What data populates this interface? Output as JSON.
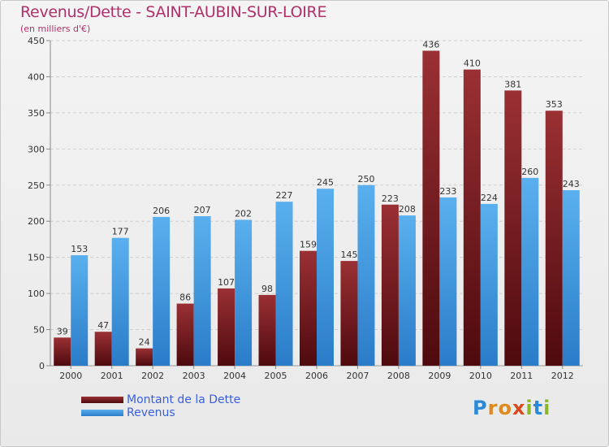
{
  "chart_data": {
    "type": "bar",
    "title": "Revenus/Dette - SAINT-AUBIN-SUR-LOIRE",
    "subtitle": "(en milliers d'€)",
    "categories": [
      "2000",
      "2001",
      "2002",
      "2003",
      "2004",
      "2005",
      "2006",
      "2007",
      "2008",
      "2009",
      "2010",
      "2011",
      "2012"
    ],
    "series": [
      {
        "name": "Montant de la Dette",
        "color": "#7a1e22",
        "values": [
          39,
          47,
          24,
          86,
          107,
          98,
          159,
          145,
          223,
          436,
          410,
          381,
          353
        ]
      },
      {
        "name": "Revenus",
        "color": "#3f9be3",
        "values": [
          153,
          177,
          206,
          207,
          202,
          227,
          245,
          250,
          208,
          233,
          224,
          260,
          243
        ]
      }
    ],
    "ylim": [
      0,
      450
    ],
    "yticks": [
      0,
      50,
      100,
      150,
      200,
      250,
      300,
      350,
      400,
      450
    ],
    "grid": true,
    "legend": "bottom-left"
  },
  "logo": {
    "letters": [
      "P",
      "r",
      "o",
      "x",
      "i",
      "t",
      "i"
    ],
    "colors": [
      "#2a8ad8",
      "#e08a1e",
      "#e08a1e",
      "#d84a1e",
      "#8ab82a",
      "#2a8ad8",
      "#8ab82a"
    ]
  }
}
